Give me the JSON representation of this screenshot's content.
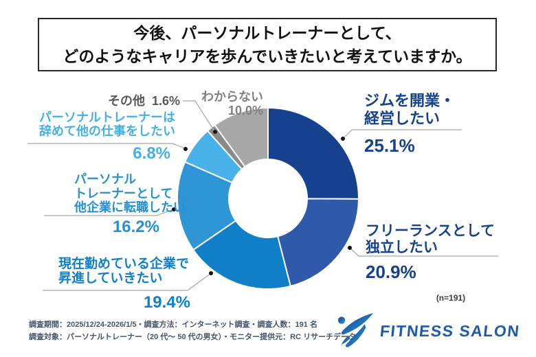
{
  "title": {
    "line1": "今後、パーソナルトレーナーとして、",
    "line2": "どのようなキャリアを歩んでいきたいと考えていますか。"
  },
  "chart_data": {
    "type": "pie",
    "subtype": "donut",
    "title": "今後、パーソナルトレーナーとして、どのようなキャリアを歩んでいきたいと考えていますか。",
    "sample_label": "(n=191)",
    "sample_size": 191,
    "start_angle_deg": 0,
    "direction": "clockwise",
    "segments": [
      {
        "name": "ジムを開業・経営したい",
        "label_lines": [
          "ジムを開業・",
          "経営したい"
        ],
        "value": 25.1,
        "pct": "25.1%",
        "color": "#16418F",
        "label_color": "#16418F"
      },
      {
        "name": "フリーランスとして独立したい",
        "label_lines": [
          "フリーランスとして",
          "独立したい"
        ],
        "value": 20.9,
        "pct": "20.9%",
        "color": "#2F5AAB",
        "label_color": "#16418F"
      },
      {
        "name": "現在勤めている企業で昇進していきたい",
        "label_lines": [
          "現在勤めている企業で",
          "昇進していきたい"
        ],
        "value": 19.4,
        "pct": "19.4%",
        "color": "#0F80C8",
        "label_color": "#0F80C8"
      },
      {
        "name": "パーソナルトレーナーとして他企業に転職したい",
        "label_lines": [
          "パーソナル",
          "トレーナーとして",
          "他企業に転職したい"
        ],
        "value": 16.2,
        "pct": "16.2%",
        "color": "#2E96D5",
        "label_color": "#2590D4"
      },
      {
        "name": "パーソナルトレーナーは辞めて他の仕事をしたい",
        "label_lines": [
          "パーソナルトレーナーは",
          "辞めて他の仕事をしたい"
        ],
        "value": 6.8,
        "pct": "6.8%",
        "color": "#49B2E8",
        "label_color": "#45B0E6"
      },
      {
        "name": "その他",
        "label_lines": [
          "その他"
        ],
        "value": 1.6,
        "pct": "1.6%",
        "color": "#8A8A8A",
        "label_color": "#595959"
      },
      {
        "name": "わからない",
        "label_lines": [
          "わからない"
        ],
        "value": 10.0,
        "pct": "10.0%",
        "color": "#A8A8A8",
        "label_color": "#808080"
      }
    ]
  },
  "footnote": {
    "line1": "調査期間：2025/12/24-2026/1/5・調査方法：インターネット調査・調査人数：191 名",
    "line2": "調査対象：パーソナルトレーナー（20 代～ 50 代の男女）・モニター提供元：RC リサーチデータ"
  },
  "logo": {
    "text": "FITNESS SALON"
  }
}
